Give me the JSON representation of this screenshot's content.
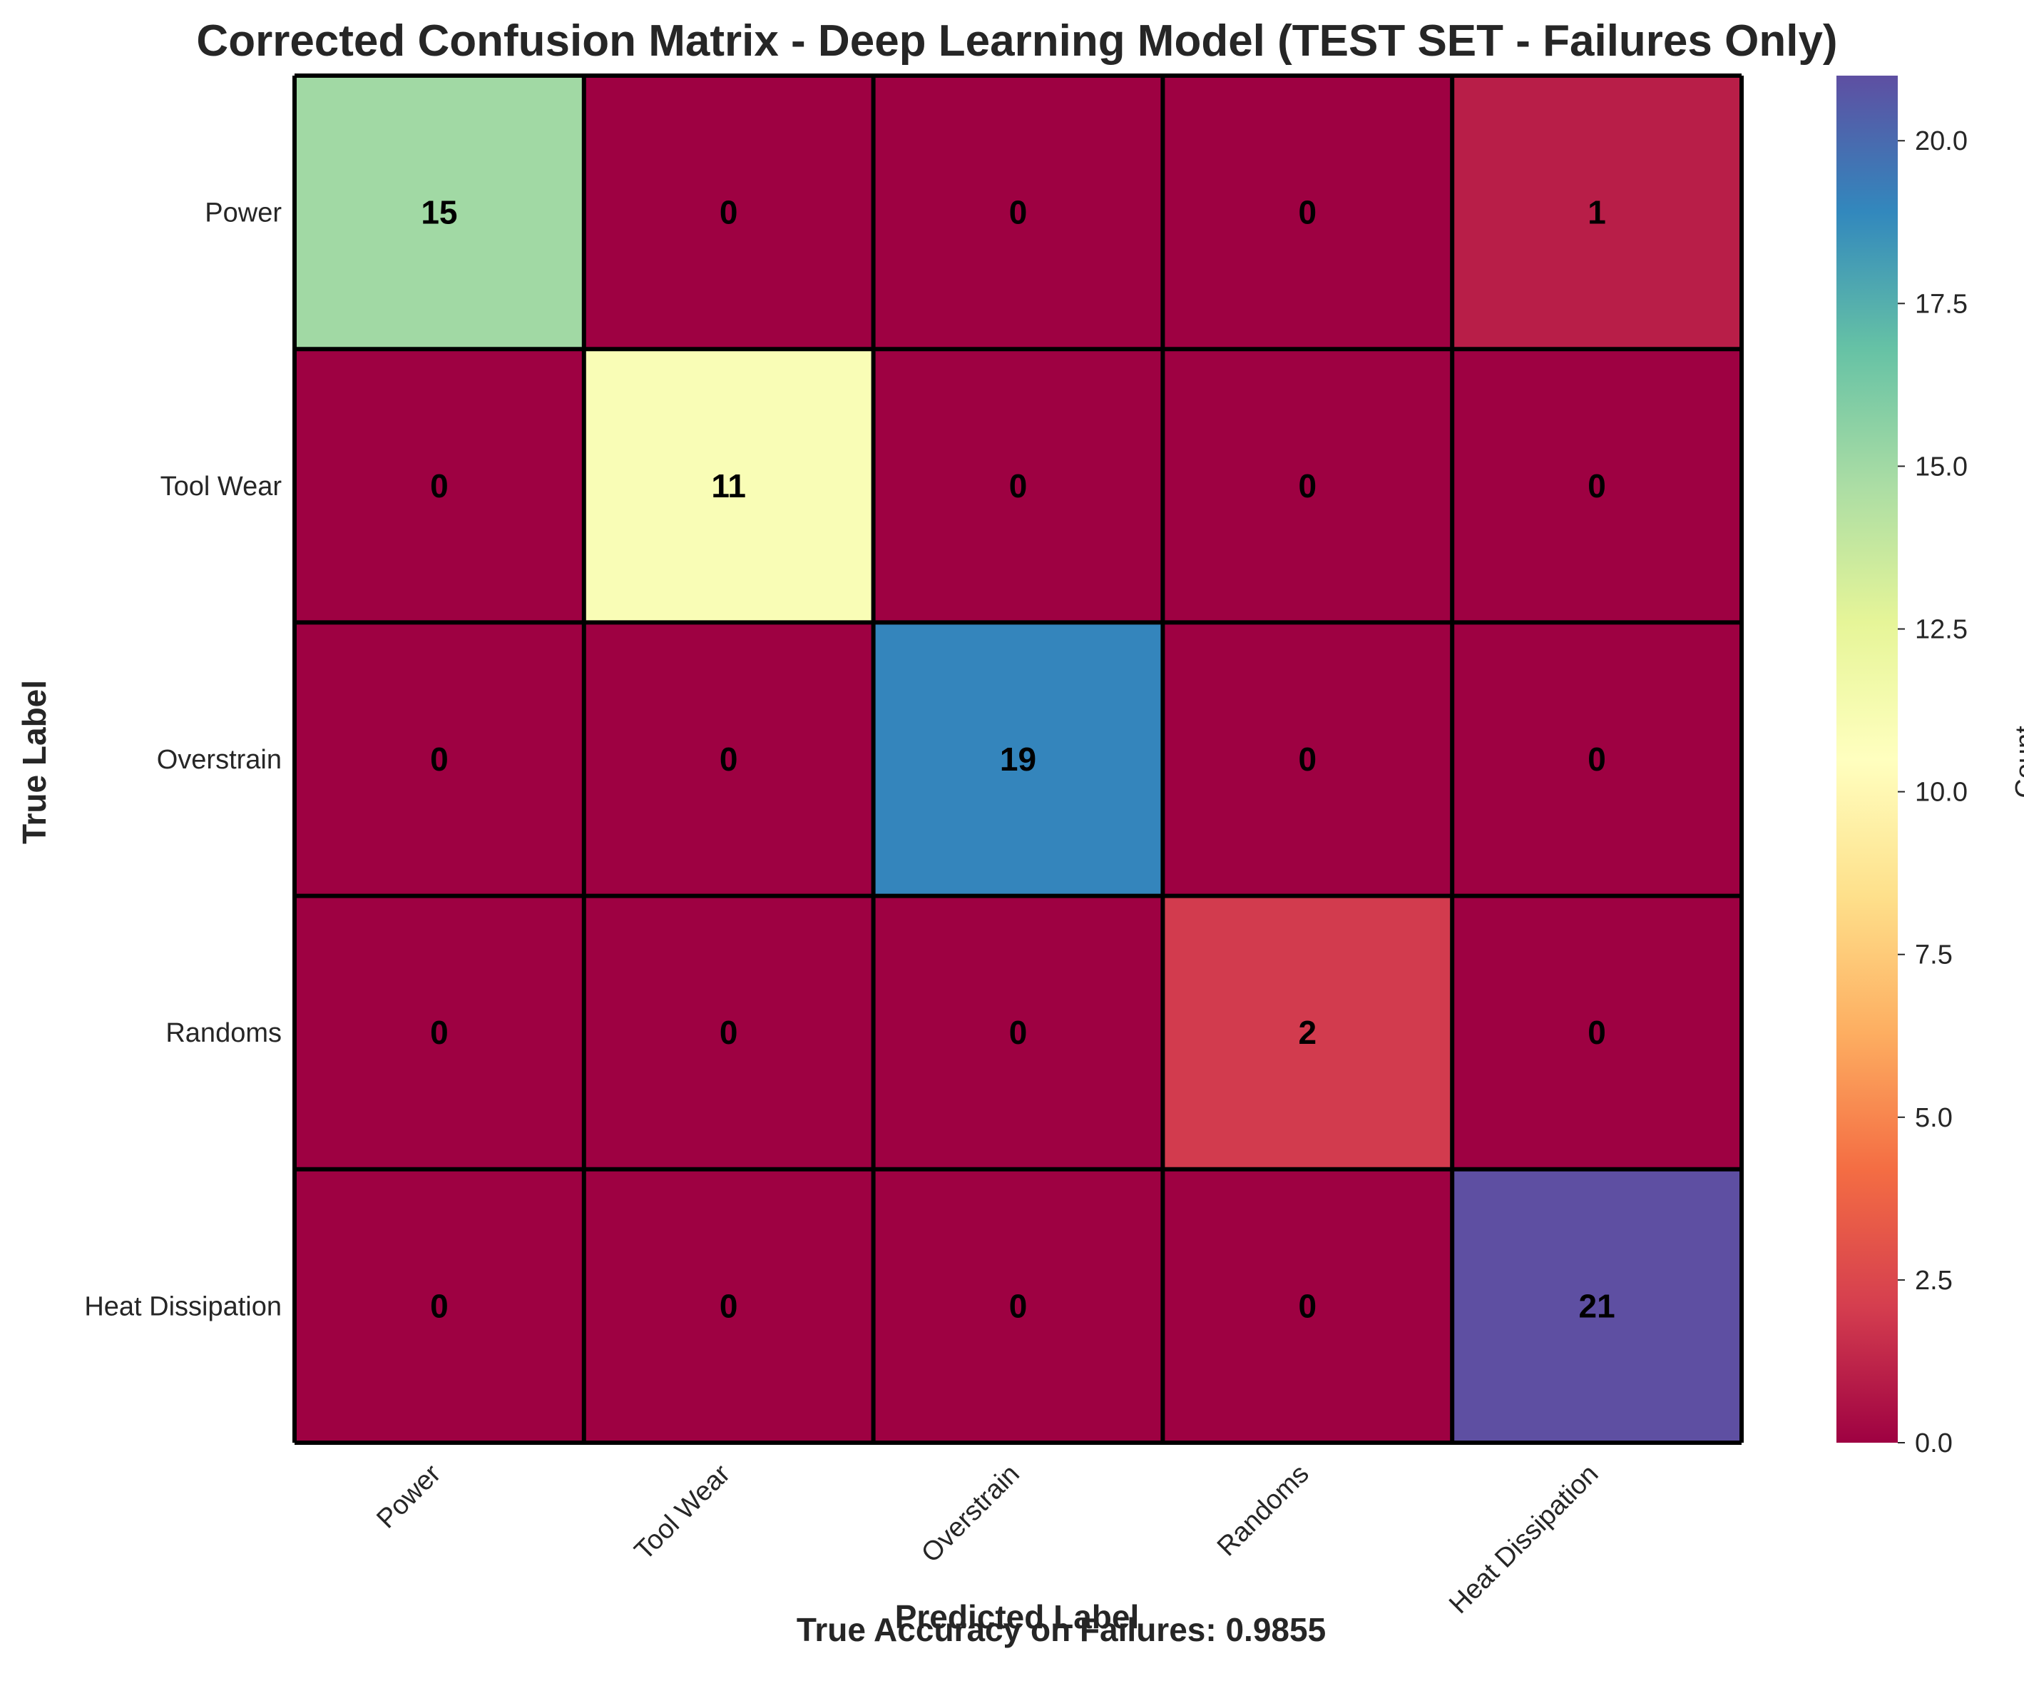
{
  "chart_data": {
    "type": "heatmap",
    "title": "Corrected Confusion Matrix - Deep Learning Model (TEST SET - Failures Only)",
    "xlabel": "Predicted Label",
    "ylabel": "True Label",
    "x_categories": [
      "Power",
      "Tool Wear",
      "Overstrain",
      "Randoms",
      "Heat Dissipation"
    ],
    "y_categories": [
      "Power",
      "Tool Wear",
      "Overstrain",
      "Randoms",
      "Heat Dissipation"
    ],
    "values": [
      [
        15,
        0,
        0,
        0,
        1
      ],
      [
        0,
        11,
        0,
        0,
        0
      ],
      [
        0,
        0,
        19,
        0,
        0
      ],
      [
        0,
        0,
        0,
        2,
        0
      ],
      [
        0,
        0,
        0,
        0,
        21
      ]
    ],
    "cell_labels": [
      [
        "15",
        "0",
        "0",
        "0",
        "1"
      ],
      [
        "0",
        "11",
        "0",
        "0",
        "0"
      ],
      [
        "0",
        "0",
        "19",
        "0",
        "0"
      ],
      [
        "0",
        "0",
        "0",
        "2",
        "0"
      ],
      [
        "0",
        "0",
        "0",
        "0",
        "21"
      ]
    ],
    "colormap": "Spectral",
    "colorbar": {
      "label": "Count",
      "range": [
        0,
        21
      ],
      "ticks": [
        0.0,
        2.5,
        5.0,
        7.5,
        10.0,
        12.5,
        15.0,
        17.5,
        20.0
      ],
      "tick_labels": [
        "0.0",
        "2.5",
        "5.0",
        "7.5",
        "10.0",
        "12.5",
        "15.0",
        "17.5",
        "20.0"
      ],
      "stops": [
        "#9e0142",
        "#d53e4f",
        "#f46d43",
        "#fdae61",
        "#fee08b",
        "#ffffbf",
        "#e6f598",
        "#abdda4",
        "#66c2a5",
        "#3288bd",
        "#5e4fa2"
      ]
    },
    "footer_text": "True Accuracy on Failures: 0.9855"
  }
}
